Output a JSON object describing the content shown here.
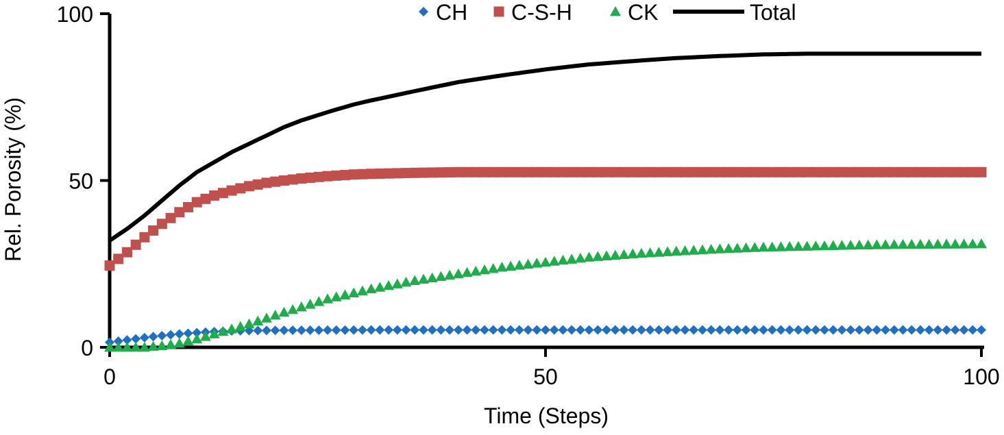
{
  "chart_data": {
    "type": "line",
    "title": "",
    "xlabel": "Time (Steps)",
    "ylabel": "Rel. Porosity (%)",
    "xlim": [
      0,
      100
    ],
    "ylim": [
      0,
      100
    ],
    "xticks": [
      "0",
      "50",
      "100"
    ],
    "yticks": [
      "0",
      "50",
      "100"
    ],
    "xtick_values": [
      0,
      50,
      100
    ],
    "ytick_values": [
      0,
      50,
      100
    ],
    "grid": false,
    "legend_position": "top",
    "series": [
      {
        "name": "CH",
        "marker": "diamond",
        "color": "#1f6fc4",
        "x": [
          0,
          2,
          4,
          6,
          8,
          10,
          12,
          14,
          16,
          20,
          30,
          40,
          50,
          60,
          70,
          80,
          90,
          100
        ],
        "y": [
          1.5,
          2.2,
          2.9,
          3.5,
          4.0,
          4.4,
          4.7,
          4.9,
          5.0,
          5.1,
          5.2,
          5.2,
          5.2,
          5.2,
          5.2,
          5.2,
          5.2,
          5.2
        ]
      },
      {
        "name": "C-S-H",
        "marker": "square",
        "color": "#c0504d",
        "x": [
          0,
          2,
          4,
          6,
          8,
          10,
          12,
          14,
          16,
          18,
          20,
          22,
          25,
          28,
          30,
          35,
          40,
          50,
          60,
          70,
          80,
          90,
          100
        ],
        "y": [
          24.5,
          28.5,
          33,
          37,
          40.5,
          43.5,
          45.5,
          47,
          48.3,
          49.3,
          50,
          50.6,
          51.3,
          51.8,
          52,
          52.3,
          52.5,
          52.5,
          52.5,
          52.5,
          52.5,
          52.5,
          52.5
        ]
      },
      {
        "name": "CK",
        "marker": "triangle",
        "color": "#1fad4b",
        "x": [
          0,
          4,
          6,
          8,
          10,
          12,
          14,
          16,
          20,
          25,
          30,
          35,
          40,
          45,
          50,
          55,
          60,
          65,
          70,
          75,
          80,
          85,
          90,
          95,
          100
        ],
        "y": [
          0,
          0,
          0.5,
          1.2,
          2.5,
          4.0,
          5.5,
          7.0,
          10.5,
          14.5,
          17.5,
          20.0,
          22.0,
          24.0,
          25.5,
          27.0,
          28.0,
          28.8,
          29.5,
          30.0,
          30.3,
          30.6,
          30.8,
          30.9,
          31.0
        ]
      },
      {
        "name": "Total",
        "marker": "none",
        "color": "#000000",
        "x": [
          0,
          2,
          4,
          6,
          8,
          10,
          12,
          14,
          16,
          18,
          20,
          22,
          25,
          28,
          30,
          35,
          40,
          45,
          50,
          55,
          60,
          65,
          70,
          75,
          80,
          85,
          90,
          95,
          100
        ],
        "y": [
          32,
          35.5,
          39.5,
          44,
          48.5,
          52.5,
          55.5,
          58.5,
          61,
          63.5,
          66,
          68,
          70.5,
          72.8,
          74,
          76.8,
          79.5,
          81.5,
          83.3,
          84.8,
          85.8,
          86.7,
          87.3,
          87.8,
          88,
          88,
          88,
          88,
          88
        ]
      }
    ]
  }
}
